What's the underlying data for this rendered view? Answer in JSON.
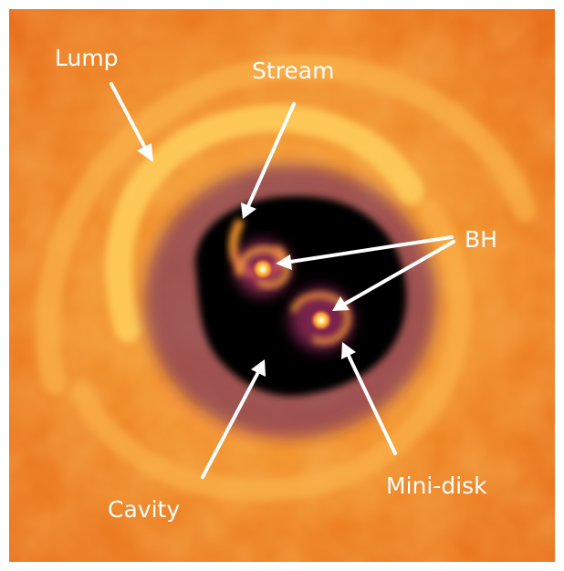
{
  "figure": {
    "labels": {
      "lump": "Lump",
      "stream": "Stream",
      "bh": "BH",
      "cavity": "Cavity",
      "minidisk": "Mini-disk"
    },
    "colors": {
      "label": "#ffffff",
      "disk_outer": "#ee6a10",
      "disk_bright": "#ffd85a",
      "cavity": "#000000",
      "cavity_edge": "#3a0c55",
      "border": "#ffffff"
    }
  }
}
